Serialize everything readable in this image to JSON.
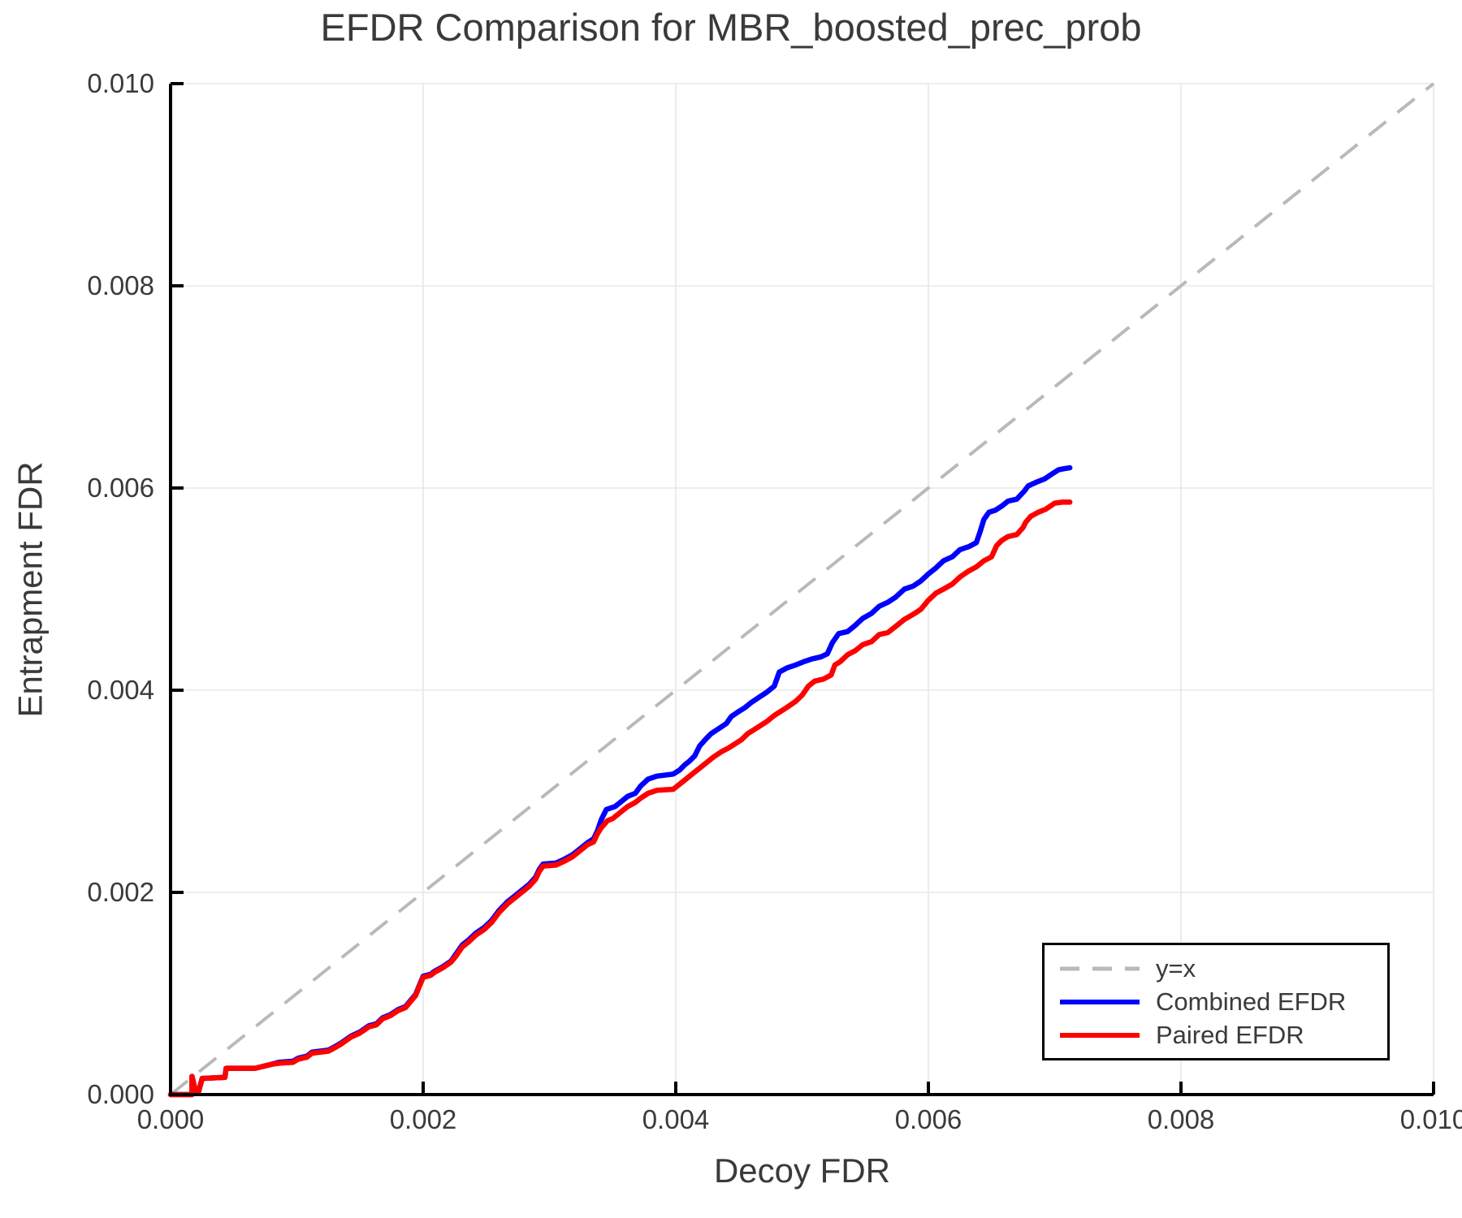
{
  "page": {
    "background": "#ffffff"
  },
  "chart_data": {
    "type": "line",
    "title": "EFDR Comparison for MBR_boosted_prec_prob",
    "xlabel": "Decoy FDR",
    "ylabel": "Entrapment FDR",
    "xlim": [
      0,
      0.01
    ],
    "ylim": [
      0,
      0.01
    ],
    "xticks": {
      "values": [
        0,
        0.002,
        0.004,
        0.006,
        0.008,
        0.01
      ],
      "labels": [
        "0.000",
        "0.002",
        "0.004",
        "0.006",
        "0.008",
        "0.010"
      ]
    },
    "yticks": {
      "values": [
        0,
        0.002,
        0.004,
        0.006,
        0.008,
        0.01
      ],
      "labels": [
        "0.000",
        "0.002",
        "0.004",
        "0.006",
        "0.008",
        "0.010"
      ]
    },
    "grid": true,
    "grid_color": "#e8e8e8",
    "axis_color": "#000000",
    "tick_label_color": "#3a3a3a",
    "identity_line": {
      "label": "y=x",
      "color": "#b9b9b9",
      "style": "dashed",
      "from": [
        0,
        0
      ],
      "to": [
        0.01,
        0.01
      ]
    },
    "legend": {
      "position": "lower right",
      "entries": [
        {
          "label": "y=x",
          "color": "#b9b9b9",
          "style": "dashed"
        },
        {
          "label": "Combined EFDR",
          "color": "#0000ff",
          "style": "solid"
        },
        {
          "label": "Paired EFDR",
          "color": "#ff0000",
          "style": "solid"
        }
      ]
    },
    "series": [
      {
        "name": "Combined EFDR",
        "color": "#0000ff",
        "points": [
          [
            0,
            0
          ],
          [
            0.00017,
            0
          ],
          [
            0.00017,
            0.00018
          ],
          [
            0.0002,
            2e-05
          ],
          [
            0.00022,
            2e-05
          ],
          [
            0.00025,
            0.00016
          ],
          [
            0.00043,
            0.00017
          ],
          [
            0.00044,
            0.00026
          ],
          [
            0.00067,
            0.00026
          ],
          [
            0.0008,
            0.0003
          ],
          [
            0.00086,
            0.00032
          ],
          [
            0.00097,
            0.00033
          ],
          [
            0.00101,
            0.00036
          ],
          [
            0.00108,
            0.00038
          ],
          [
            0.00112,
            0.00042
          ],
          [
            0.00125,
            0.00044
          ],
          [
            0.00131,
            0.00048
          ],
          [
            0.00135,
            0.00051
          ],
          [
            0.00143,
            0.00058
          ],
          [
            0.0015,
            0.00062
          ],
          [
            0.00157,
            0.00068
          ],
          [
            0.00163,
            0.0007
          ],
          [
            0.00168,
            0.00076
          ],
          [
            0.00174,
            0.00079
          ],
          [
            0.0018,
            0.00084
          ],
          [
            0.00186,
            0.00087
          ],
          [
            0.0019,
            0.00093
          ],
          [
            0.00194,
            0.00099
          ],
          [
            0.00197,
            0.00108
          ],
          [
            0.002,
            0.00117
          ],
          [
            0.00206,
            0.00119
          ],
          [
            0.00209,
            0.00122
          ],
          [
            0.00215,
            0.00126
          ],
          [
            0.00222,
            0.00132
          ],
          [
            0.00226,
            0.00139
          ],
          [
            0.00231,
            0.00148
          ],
          [
            0.00236,
            0.00153
          ],
          [
            0.00242,
            0.0016
          ],
          [
            0.00248,
            0.00165
          ],
          [
            0.00254,
            0.00172
          ],
          [
            0.0026,
            0.00182
          ],
          [
            0.00267,
            0.00191
          ],
          [
            0.00272,
            0.00196
          ],
          [
            0.00278,
            0.00202
          ],
          [
            0.00284,
            0.00208
          ],
          [
            0.00289,
            0.00215
          ],
          [
            0.00292,
            0.00223
          ],
          [
            0.00295,
            0.00228
          ],
          [
            0.00305,
            0.00229
          ],
          [
            0.00312,
            0.00233
          ],
          [
            0.00318,
            0.00237
          ],
          [
            0.00324,
            0.00243
          ],
          [
            0.0033,
            0.00249
          ],
          [
            0.00335,
            0.00253
          ],
          [
            0.00338,
            0.00261
          ],
          [
            0.00341,
            0.00272
          ],
          [
            0.00345,
            0.00282
          ],
          [
            0.00352,
            0.00285
          ],
          [
            0.00357,
            0.0029
          ],
          [
            0.00362,
            0.00295
          ],
          [
            0.00368,
            0.00298
          ],
          [
            0.00372,
            0.00305
          ],
          [
            0.00378,
            0.00312
          ],
          [
            0.00385,
            0.00315
          ],
          [
            0.00398,
            0.00317
          ],
          [
            0.00403,
            0.00321
          ],
          [
            0.00407,
            0.00326
          ],
          [
            0.00411,
            0.0033
          ],
          [
            0.00415,
            0.00335
          ],
          [
            0.00419,
            0.00345
          ],
          [
            0.00424,
            0.00352
          ],
          [
            0.00428,
            0.00357
          ],
          [
            0.00434,
            0.00362
          ],
          [
            0.0044,
            0.00367
          ],
          [
            0.00444,
            0.00374
          ],
          [
            0.0045,
            0.00379
          ],
          [
            0.00455,
            0.00383
          ],
          [
            0.0046,
            0.00388
          ],
          [
            0.00466,
            0.00393
          ],
          [
            0.00472,
            0.00398
          ],
          [
            0.00478,
            0.00404
          ],
          [
            0.00482,
            0.00418
          ],
          [
            0.00488,
            0.00422
          ],
          [
            0.00495,
            0.00425
          ],
          [
            0.00501,
            0.00428
          ],
          [
            0.00508,
            0.00431
          ],
          [
            0.00515,
            0.00433
          ],
          [
            0.0052,
            0.00436
          ],
          [
            0.00524,
            0.00447
          ],
          [
            0.00529,
            0.00456
          ],
          [
            0.00536,
            0.00458
          ],
          [
            0.00542,
            0.00464
          ],
          [
            0.00548,
            0.00471
          ],
          [
            0.00555,
            0.00476
          ],
          [
            0.00561,
            0.00483
          ],
          [
            0.00568,
            0.00487
          ],
          [
            0.00574,
            0.00492
          ],
          [
            0.00581,
            0.005
          ],
          [
            0.00588,
            0.00503
          ],
          [
            0.00594,
            0.00508
          ],
          [
            0.006,
            0.00515
          ],
          [
            0.00606,
            0.00521
          ],
          [
            0.00612,
            0.00528
          ],
          [
            0.00619,
            0.00532
          ],
          [
            0.00625,
            0.00539
          ],
          [
            0.00632,
            0.00542
          ],
          [
            0.00638,
            0.00546
          ],
          [
            0.00641,
            0.00557
          ],
          [
            0.00644,
            0.00569
          ],
          [
            0.00648,
            0.00576
          ],
          [
            0.00653,
            0.00578
          ],
          [
            0.00658,
            0.00582
          ],
          [
            0.00663,
            0.00587
          ],
          [
            0.0067,
            0.00589
          ],
          [
            0.00676,
            0.00597
          ],
          [
            0.00679,
            0.00602
          ],
          [
            0.00686,
            0.00606
          ],
          [
            0.00692,
            0.00609
          ],
          [
            0.00698,
            0.00614
          ],
          [
            0.00703,
            0.00618
          ],
          [
            0.00707,
            0.00619
          ],
          [
            0.00712,
            0.0062
          ]
        ]
      },
      {
        "name": "Paired EFDR",
        "color": "#ff0000",
        "points": [
          [
            0,
            0
          ],
          [
            0.00017,
            0
          ],
          [
            0.00017,
            0.00018
          ],
          [
            0.0002,
            2e-05
          ],
          [
            0.00022,
            2e-05
          ],
          [
            0.00025,
            0.00016
          ],
          [
            0.00043,
            0.00017
          ],
          [
            0.00044,
            0.00026
          ],
          [
            0.00067,
            0.00026
          ],
          [
            0.0008,
            0.0003
          ],
          [
            0.00086,
            0.00031
          ],
          [
            0.00097,
            0.00032
          ],
          [
            0.00101,
            0.00035
          ],
          [
            0.00108,
            0.00037
          ],
          [
            0.00112,
            0.00041
          ],
          [
            0.00125,
            0.00043
          ],
          [
            0.00131,
            0.00047
          ],
          [
            0.00135,
            0.0005
          ],
          [
            0.00143,
            0.00057
          ],
          [
            0.0015,
            0.00061
          ],
          [
            0.00157,
            0.00067
          ],
          [
            0.00163,
            0.00069
          ],
          [
            0.00168,
            0.00075
          ],
          [
            0.00174,
            0.00078
          ],
          [
            0.0018,
            0.00083
          ],
          [
            0.00186,
            0.00086
          ],
          [
            0.0019,
            0.00092
          ],
          [
            0.00194,
            0.00098
          ],
          [
            0.00197,
            0.00107
          ],
          [
            0.002,
            0.00116
          ],
          [
            0.00206,
            0.00118
          ],
          [
            0.00209,
            0.00121
          ],
          [
            0.00215,
            0.00125
          ],
          [
            0.00222,
            0.00131
          ],
          [
            0.00226,
            0.00137
          ],
          [
            0.00231,
            0.00146
          ],
          [
            0.00236,
            0.00151
          ],
          [
            0.00242,
            0.00158
          ],
          [
            0.00248,
            0.00163
          ],
          [
            0.00254,
            0.0017
          ],
          [
            0.0026,
            0.0018
          ],
          [
            0.00267,
            0.00189
          ],
          [
            0.00272,
            0.00194
          ],
          [
            0.00278,
            0.002
          ],
          [
            0.00284,
            0.00206
          ],
          [
            0.00289,
            0.00213
          ],
          [
            0.00292,
            0.00221
          ],
          [
            0.00295,
            0.00226
          ],
          [
            0.00305,
            0.00227
          ],
          [
            0.00312,
            0.00231
          ],
          [
            0.00318,
            0.00235
          ],
          [
            0.00324,
            0.00241
          ],
          [
            0.0033,
            0.00247
          ],
          [
            0.00335,
            0.0025
          ],
          [
            0.00338,
            0.00258
          ],
          [
            0.00341,
            0.00264
          ],
          [
            0.00346,
            0.00271
          ],
          [
            0.0035,
            0.00273
          ],
          [
            0.00356,
            0.00279
          ],
          [
            0.00362,
            0.00285
          ],
          [
            0.00368,
            0.00289
          ],
          [
            0.00372,
            0.00293
          ],
          [
            0.00378,
            0.00298
          ],
          [
            0.00385,
            0.00301
          ],
          [
            0.00398,
            0.00302
          ],
          [
            0.00403,
            0.00307
          ],
          [
            0.00407,
            0.00311
          ],
          [
            0.00411,
            0.00315
          ],
          [
            0.00415,
            0.00319
          ],
          [
            0.00419,
            0.00323
          ],
          [
            0.00424,
            0.00328
          ],
          [
            0.0043,
            0.00334
          ],
          [
            0.00436,
            0.00339
          ],
          [
            0.00442,
            0.00343
          ],
          [
            0.00447,
            0.00347
          ],
          [
            0.00452,
            0.00351
          ],
          [
            0.00457,
            0.00357
          ],
          [
            0.00462,
            0.00361
          ],
          [
            0.00467,
            0.00365
          ],
          [
            0.00472,
            0.00369
          ],
          [
            0.00478,
            0.00375
          ],
          [
            0.00483,
            0.00379
          ],
          [
            0.00488,
            0.00383
          ],
          [
            0.00495,
            0.00389
          ],
          [
            0.005,
            0.00395
          ],
          [
            0.00505,
            0.00404
          ],
          [
            0.0051,
            0.00409
          ],
          [
            0.00517,
            0.00411
          ],
          [
            0.00523,
            0.00415
          ],
          [
            0.00526,
            0.00425
          ],
          [
            0.0053,
            0.00428
          ],
          [
            0.00536,
            0.00435
          ],
          [
            0.00542,
            0.00439
          ],
          [
            0.00548,
            0.00445
          ],
          [
            0.00555,
            0.00448
          ],
          [
            0.00561,
            0.00455
          ],
          [
            0.00568,
            0.00457
          ],
          [
            0.00574,
            0.00463
          ],
          [
            0.00581,
            0.0047
          ],
          [
            0.00588,
            0.00475
          ],
          [
            0.00594,
            0.0048
          ],
          [
            0.006,
            0.00489
          ],
          [
            0.00606,
            0.00496
          ],
          [
            0.00612,
            0.005
          ],
          [
            0.00619,
            0.00505
          ],
          [
            0.00625,
            0.00512
          ],
          [
            0.00632,
            0.00518
          ],
          [
            0.00638,
            0.00522
          ],
          [
            0.00644,
            0.00528
          ],
          [
            0.0065,
            0.00532
          ],
          [
            0.00654,
            0.00543
          ],
          [
            0.00658,
            0.00548
          ],
          [
            0.00663,
            0.00552
          ],
          [
            0.0067,
            0.00554
          ],
          [
            0.00675,
            0.00561
          ],
          [
            0.00677,
            0.00566
          ],
          [
            0.00681,
            0.00572
          ],
          [
            0.00687,
            0.00576
          ],
          [
            0.00693,
            0.00579
          ],
          [
            0.007,
            0.00585
          ],
          [
            0.00706,
            0.00586
          ],
          [
            0.00712,
            0.00586
          ]
        ]
      }
    ]
  }
}
